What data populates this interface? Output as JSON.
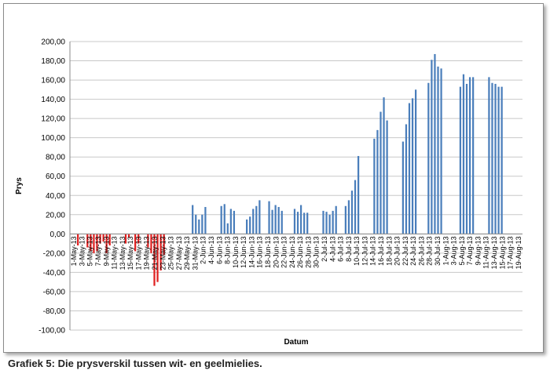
{
  "caption": "Grafiek 5: Die prysverskil tussen wit- en geelmielies.",
  "chart_data": {
    "type": "bar",
    "title": "",
    "xlabel": "Datum",
    "ylabel": "Prys",
    "ylim": [
      -100,
      200
    ],
    "y_ticks": [
      200,
      180,
      160,
      140,
      120,
      100,
      80,
      60,
      40,
      20,
      0,
      -20,
      -40,
      -60,
      -80,
      -100
    ],
    "y_tick_labels": [
      "200,00",
      "180,00",
      "160,00",
      "140,00",
      "120,00",
      "100,00",
      "80,00",
      "60,00",
      "40,00",
      "20,00",
      "0,00",
      "-20,00",
      "-40,00",
      "-60,00",
      "-80,00",
      "-100,00"
    ],
    "grid": true,
    "legend": "none",
    "positive_color": "#4a7ebb",
    "negative_color": "#e02020",
    "grid_color": "#c8c8c8",
    "tick_labels": [
      "1-May-13",
      "3-May-13",
      "5-May-13",
      "7-May-13",
      "9-May-13",
      "11-May-13",
      "13-May-13",
      "15-May-13",
      "17-May-13",
      "19-May-13",
      "21-May-13",
      "23-May-13",
      "25-May-13",
      "27-May-13",
      "29-May-13",
      "31-May-13",
      "2-Jun-13",
      "4-Jun-13",
      "6-Jun-13",
      "8-Jun-13",
      "10-Jun-13",
      "12-Jun-13",
      "14-Jun-13",
      "16-Jun-13",
      "18-Jun-13",
      "20-Jun-13",
      "22-Jun-13",
      "24-Jun-13",
      "26-Jun-13",
      "28-Jun-13",
      "30-Jun-13",
      "2-Jul-13",
      "4-Jul-13",
      "6-Jul-13",
      "8-Jul-13",
      "10-Jul-13",
      "12-Jul-13",
      "14-Jul-13",
      "16-Jul-13",
      "18-Jul-13",
      "20-Jul-13",
      "22-Jul-13",
      "24-Jul-13",
      "26-Jul-13",
      "28-Jul-13",
      "30-Jul-13",
      "1-Aug-13",
      "3-Aug-13",
      "5-Aug-13",
      "7-Aug-13",
      "9-Aug-13",
      "11-Aug-13",
      "13-Aug-13",
      "15-Aug-13",
      "17-Aug-13",
      "19-Aug-13"
    ],
    "values": [
      0,
      0,
      -12,
      0,
      0,
      -14,
      -18,
      -20,
      -18,
      -10,
      -8,
      -20,
      -12,
      0,
      0,
      0,
      0,
      -10,
      -4,
      0,
      -18,
      -10,
      0,
      0,
      -14,
      -20,
      -54,
      -50,
      -38,
      -22,
      0,
      0,
      0,
      0,
      0,
      0,
      0,
      0,
      30,
      20,
      15,
      20,
      28,
      0,
      0,
      0,
      0,
      29,
      31,
      11,
      26,
      24,
      0,
      0,
      0,
      15,
      18,
      26,
      29,
      35,
      0,
      0,
      34,
      25,
      30,
      28,
      24,
      0,
      0,
      0,
      26,
      23,
      30,
      22,
      22,
      0,
      0,
      0,
      0,
      24,
      23,
      20,
      24,
      29,
      0,
      0,
      29,
      35,
      45,
      56,
      81,
      0,
      0,
      0,
      0,
      99,
      108,
      127,
      142,
      118,
      0,
      0,
      0,
      0,
      96,
      114,
      136,
      141,
      150,
      0,
      0,
      0,
      157,
      181,
      187,
      174,
      172,
      0,
      0,
      0,
      0,
      0,
      153,
      166,
      156,
      163,
      163,
      0,
      0,
      0,
      0,
      163,
      157,
      156,
      153,
      153,
      0,
      0,
      0,
      0,
      0,
      0
    ]
  }
}
